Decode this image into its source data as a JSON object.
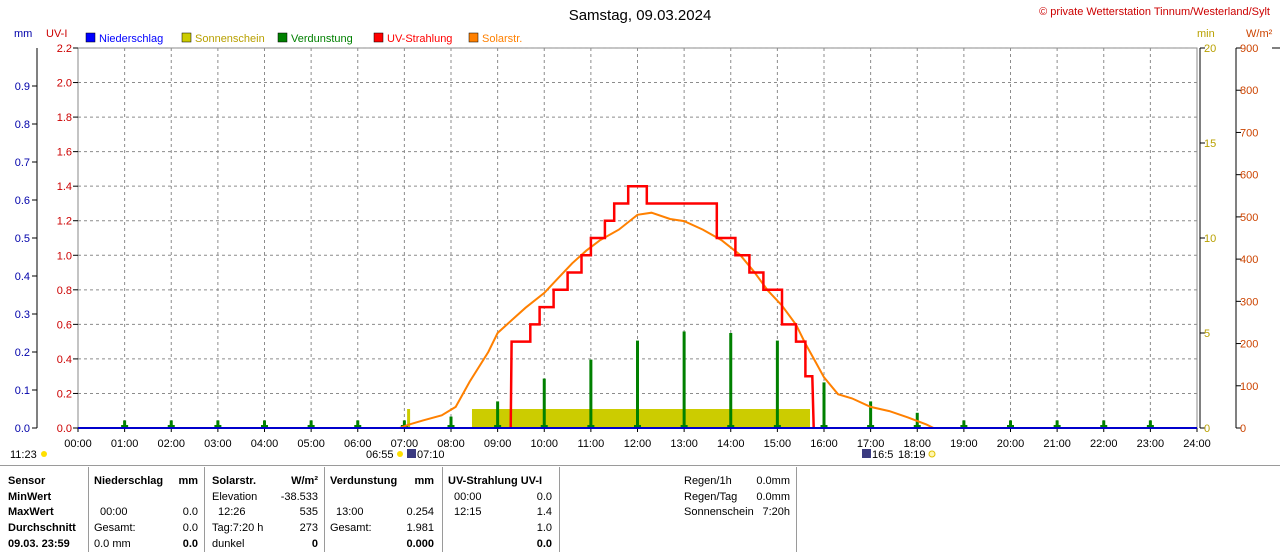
{
  "header": {
    "title": "Samstag, 09.03.2024",
    "copyright": "© private Wetterstation Tinnum/Westerland/Sylt"
  },
  "axes": {
    "left_units": [
      "mm",
      "UV-I"
    ],
    "right_units": [
      "min",
      "W/m²"
    ],
    "mm_ticks": [
      "0.0",
      "0.1",
      "0.2",
      "0.3",
      "0.4",
      "0.5",
      "0.6",
      "0.7",
      "0.8",
      "0.9"
    ],
    "uv_ticks": [
      "0.0",
      "0.2",
      "0.4",
      "0.6",
      "0.8",
      "1.0",
      "1.2",
      "1.4",
      "1.6",
      "1.8",
      "2.0",
      "2.2"
    ],
    "min_ticks": [
      "0",
      "5",
      "10",
      "15",
      "20"
    ],
    "wm2_ticks": [
      "0",
      "100",
      "200",
      "300",
      "400",
      "500",
      "600",
      "700",
      "800",
      "900"
    ],
    "x_ticks": [
      "00:00",
      "01:00",
      "02:00",
      "03:00",
      "04:00",
      "05:00",
      "06:00",
      "07:00",
      "08:00",
      "09:00",
      "10:00",
      "11:00",
      "12:00",
      "13:00",
      "14:00",
      "15:00",
      "16:00",
      "17:00",
      "18:00",
      "19:00",
      "20:00",
      "21:00",
      "22:00",
      "23:00",
      "24:00"
    ]
  },
  "legend": [
    {
      "label": "Niederschlag",
      "color": "#0000ff"
    },
    {
      "label": "Sonnenschein",
      "color": "#cccc00"
    },
    {
      "label": "Verdunstung",
      "color": "#008000"
    },
    {
      "label": "UV-Strahlung",
      "color": "#ff0000"
    },
    {
      "label": "Solarstr.",
      "color": "#ff8000"
    }
  ],
  "sun_events": {
    "moonset": "11:23",
    "sunrise": "06:55",
    "civil_dawn": "07:10",
    "civil_dusk": "16:5",
    "sunset": "18:19"
  },
  "chart_data": {
    "type": "line",
    "title": "Samstag, 09.03.2024",
    "x_range": [
      "00:00",
      "24:00"
    ],
    "ylim_mm": [
      0,
      1.0
    ],
    "ylim_uv": [
      0,
      2.2
    ],
    "ylim_min": [
      0,
      20
    ],
    "ylim_wm2": [
      0,
      900
    ],
    "grid": true,
    "legend_position": "top-left",
    "series": [
      {
        "name": "Solarstr.",
        "unit": "W/m²",
        "color": "#ff8000",
        "x": [
          6.9,
          7.1,
          7.4,
          7.8,
          8.1,
          8.4,
          8.8,
          9.0,
          9.3,
          9.6,
          10.0,
          10.3,
          10.6,
          10.9,
          11.2,
          11.6,
          12.0,
          12.3,
          12.7,
          13.0,
          13.4,
          13.8,
          14.2,
          14.5,
          14.8,
          15.1,
          15.4,
          15.6,
          15.8,
          16.0,
          16.3,
          16.6,
          17.0,
          17.4,
          17.8,
          18.2,
          18.35
        ],
        "y": [
          0,
          8,
          18,
          30,
          50,
          110,
          180,
          225,
          255,
          285,
          320,
          355,
          390,
          420,
          445,
          470,
          505,
          510,
          495,
          490,
          470,
          445,
          410,
          370,
          325,
          290,
          245,
          200,
          160,
          120,
          80,
          70,
          50,
          40,
          25,
          8,
          0
        ]
      },
      {
        "name": "UV-Strahlung",
        "unit": "UV-I",
        "color": "#ff0000",
        "x": [
          9.28,
          9.3,
          9.7,
          9.7,
          9.9,
          9.9,
          10.2,
          10.2,
          10.5,
          10.5,
          10.8,
          10.8,
          11.0,
          11.0,
          11.3,
          11.3,
          11.5,
          11.5,
          11.8,
          11.8,
          12.2,
          12.2,
          12.9,
          12.9,
          13.7,
          13.7,
          14.1,
          14.1,
          14.4,
          14.4,
          14.7,
          14.7,
          15.1,
          15.1,
          15.4,
          15.4,
          15.6,
          15.6,
          15.75,
          15.78
        ],
        "y": [
          0,
          0.5,
          0.5,
          0.6,
          0.6,
          0.7,
          0.7,
          0.8,
          0.8,
          0.9,
          0.9,
          1.0,
          1.0,
          1.1,
          1.1,
          1.2,
          1.2,
          1.3,
          1.3,
          1.4,
          1.4,
          1.3,
          1.3,
          1.3,
          1.3,
          1.1,
          1.1,
          1.0,
          1.0,
          0.9,
          0.9,
          0.8,
          0.8,
          0.6,
          0.6,
          0.5,
          0.5,
          0.3,
          0.3,
          0
        ]
      },
      {
        "name": "Sonnenschein",
        "unit": "min",
        "color": "#cccc00",
        "spans": [
          {
            "from": 8.45,
            "to": 15.7,
            "value": 1
          }
        ],
        "spikes": [
          {
            "x": 7.08,
            "value": 1
          }
        ]
      },
      {
        "name": "Verdunstung",
        "unit": "mm",
        "color": "#008000",
        "x": [
          1,
          2,
          3,
          4,
          5,
          6,
          7,
          8,
          9,
          10,
          11,
          12,
          13,
          14,
          15,
          16,
          17,
          18,
          19,
          20,
          21,
          22,
          23
        ],
        "y": [
          0.02,
          0.02,
          0.02,
          0.02,
          0.02,
          0.02,
          0.02,
          0.03,
          0.07,
          0.13,
          0.18,
          0.23,
          0.254,
          0.25,
          0.23,
          0.12,
          0.07,
          0.04,
          0.02,
          0.02,
          0.02,
          0.02,
          0.02
        ]
      },
      {
        "name": "Niederschlag",
        "unit": "mm",
        "color": "#0000ff",
        "x": [],
        "y": []
      }
    ]
  },
  "table": {
    "sensor": {
      "header": "Sensor",
      "minwert": "MinWert",
      "maxwert": "MaxWert",
      "durchschnitt": "Durchschnitt",
      "date": "09.03. 23:59"
    },
    "niederschlag": {
      "header": "Niederschlag",
      "unit": "mm",
      "max_time": "00:00",
      "max_value": "0.0",
      "gesamt_label": "Gesamt:",
      "gesamt_value": "0.0",
      "last_label": "0.0 mm",
      "last_value": "0.0"
    },
    "solar": {
      "header": "Solarstr.",
      "unit": "W/m²",
      "elev_label": "Elevation",
      "elev_value": "-38.533",
      "max_time": "12:26",
      "max_value": "535",
      "tag_label": "Tag:7:20 h",
      "tag_value": "273",
      "last_label": "dunkel",
      "last_value": "0"
    },
    "verdunstung": {
      "header": "Verdunstung",
      "unit": "mm",
      "max_time": "13:00",
      "max_value": "0.254",
      "gesamt_label": "Gesamt:",
      "gesamt_value": "1.981",
      "last_value": "0.000"
    },
    "uv": {
      "header": "UV-Strahlung UV-I",
      "min_time": "00:00",
      "min_value": "0.0",
      "max_time": "12:15",
      "max_value": "1.4",
      "avg_value": "1.0",
      "last_value": "0.0"
    },
    "regen": {
      "r1_label": "Regen/1h",
      "r1_value": "0.0mm",
      "r2_label": "Regen/Tag",
      "r2_value": "0.0mm",
      "r3_label": "Sonnenschein",
      "r3_value": "7:20h"
    }
  }
}
